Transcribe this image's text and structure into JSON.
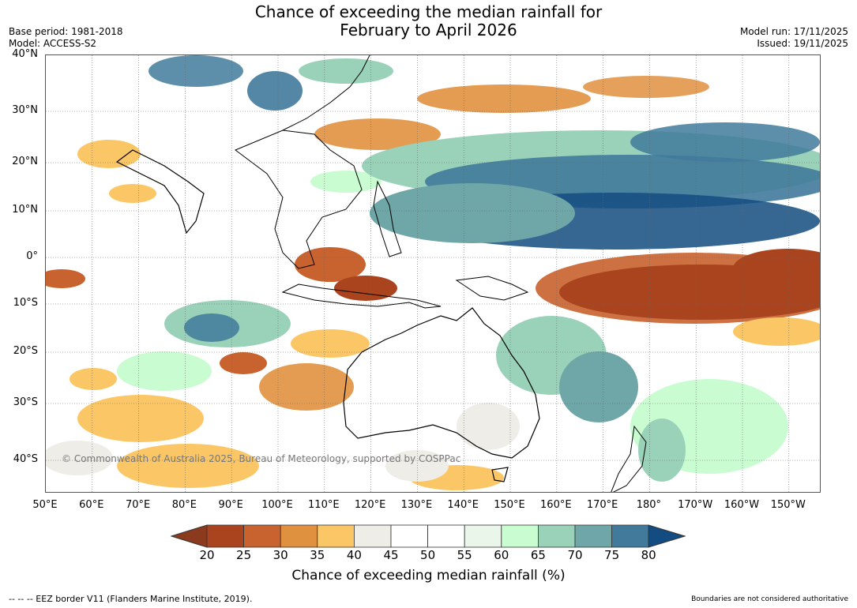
{
  "title": {
    "line1": "Chance of exceeding the median rainfall for",
    "line2": "February to April 2026"
  },
  "meta": {
    "base_period": "Base period: 1981-2018",
    "model": "Model: ACCESS-S2",
    "model_run": "Model run: 17/11/2025",
    "issued": "Issued: 19/11/2025"
  },
  "map": {
    "lat_labels": [
      "40°N",
      "30°N",
      "20°N",
      "10°N",
      "0°",
      "10°S",
      "20°S",
      "30°S",
      "40°S"
    ],
    "lon_labels": [
      "50°E",
      "60°E",
      "70°E",
      "80°E",
      "90°E",
      "100°E",
      "110°E",
      "120°E",
      "130°E",
      "140°E",
      "150°E",
      "160°E",
      "170°E",
      "180°",
      "170°W",
      "160°W",
      "150°W"
    ],
    "copyright": "© Commonwealth of Australia 2025, Bureau of Meteorology, supported by COSPPac"
  },
  "colorbar": {
    "title": "Chance of exceeding median rainfall (%)",
    "ticks": [
      "20",
      "25",
      "30",
      "35",
      "40",
      "45",
      "50",
      "55",
      "60",
      "65",
      "70",
      "75",
      "80"
    ],
    "low_color": "#8c3a1e",
    "high_color": "#134c80",
    "colors": [
      "#a9441f",
      "#c8622f",
      "#e0913f",
      "#fbc766",
      "#efede8",
      "#ffffff",
      "#ffffff",
      "#e9f6e9",
      "#c9fcd1",
      "#9ad1b9",
      "#6fa6a7",
      "#417a9b"
    ]
  },
  "footer": {
    "left": "--  --  -- EEZ border V11 (Flanders Marine Institute, 2019).",
    "right": "Boundaries are not considered authoritative"
  }
}
